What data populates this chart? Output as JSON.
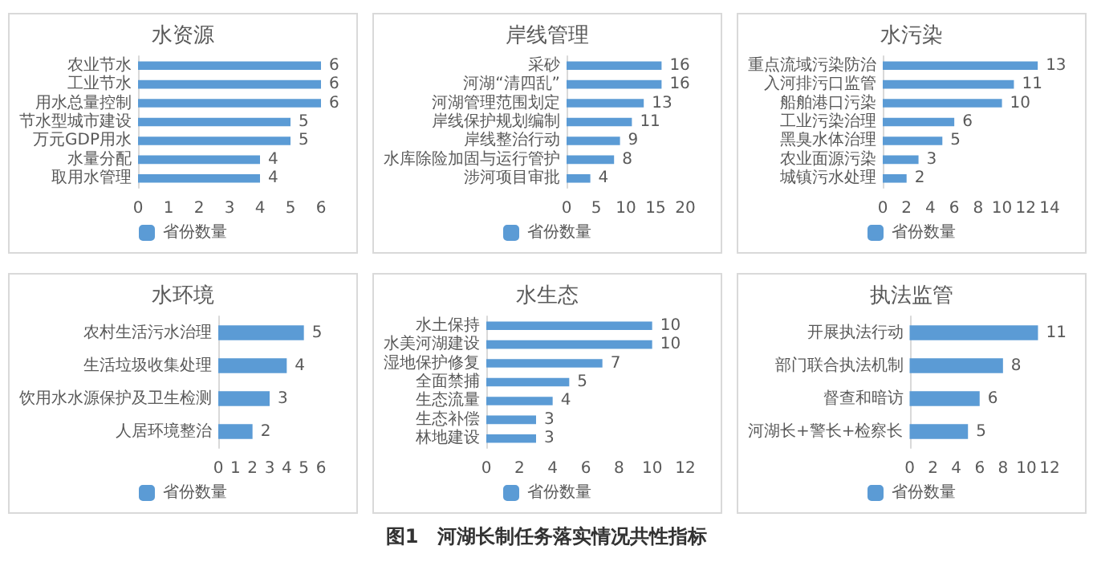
{
  "chart_data": [
    {
      "type": "bar",
      "orientation": "horizontal",
      "title": "水资源",
      "categories": [
        "农业节水",
        "工业节水",
        "用水总量控制",
        "节水型城市建设",
        "万元GDP用水",
        "水量分配",
        "取用水管理"
      ],
      "series": [
        {
          "name": "省份数量",
          "color": "#5b9bd5",
          "values": [
            6,
            6,
            6,
            5,
            5,
            4,
            4
          ]
        }
      ],
      "xlim": [
        0,
        6
      ],
      "xticks": [
        0,
        1,
        2,
        3,
        4,
        5,
        6
      ],
      "data_labels": true,
      "legend": "bottom"
    },
    {
      "type": "bar",
      "orientation": "horizontal",
      "title": "岸线管理",
      "categories": [
        "采砂",
        "河湖“清四乱”",
        "河湖管理范围划定",
        "岸线保护规划编制",
        "岸线整治行动",
        "水库除险加固与运行管护",
        "涉河项目审批"
      ],
      "series": [
        {
          "name": "省份数量",
          "color": "#5b9bd5",
          "values": [
            16,
            16,
            13,
            11,
            9,
            8,
            4
          ]
        }
      ],
      "xlim": [
        0,
        20
      ],
      "xticks": [
        0,
        5,
        10,
        15,
        20
      ],
      "data_labels": true,
      "legend": "bottom"
    },
    {
      "type": "bar",
      "orientation": "horizontal",
      "title": "水污染",
      "categories": [
        "重点流域污染防治",
        "入河排污口监管",
        "船舶港口污染",
        "工业污染治理",
        "黑臭水体治理",
        "农业面源污染",
        "城镇污水处理"
      ],
      "series": [
        {
          "name": "省份数量",
          "color": "#5b9bd5",
          "values": [
            13,
            11,
            10,
            6,
            5,
            3,
            2
          ]
        }
      ],
      "xlim": [
        0,
        14
      ],
      "xticks": [
        0,
        2,
        4,
        6,
        8,
        10,
        12,
        14
      ],
      "data_labels": true,
      "legend": "bottom"
    },
    {
      "type": "bar",
      "orientation": "horizontal",
      "title": "水环境",
      "categories": [
        "农村生活污水治理",
        "生活垃圾收集处理",
        "饮用水水源保护及卫生检测",
        "人居环境整治"
      ],
      "series": [
        {
          "name": "省份数量",
          "color": "#5b9bd5",
          "values": [
            5,
            4,
            3,
            2
          ]
        }
      ],
      "xlim": [
        0,
        6
      ],
      "xticks": [
        0,
        1,
        2,
        3,
        4,
        5,
        6
      ],
      "data_labels": true,
      "legend": "bottom"
    },
    {
      "type": "bar",
      "orientation": "horizontal",
      "title": "水生态",
      "categories": [
        "水土保持",
        "水美河湖建设",
        "湿地保护修复",
        "全面禁捕",
        "生态流量",
        "生态补偿",
        "林地建设"
      ],
      "series": [
        {
          "name": "省份数量",
          "color": "#5b9bd5",
          "values": [
            10,
            10,
            7,
            5,
            4,
            3,
            3
          ]
        }
      ],
      "xlim": [
        0,
        12
      ],
      "xticks": [
        0,
        2,
        4,
        6,
        8,
        10,
        12
      ],
      "data_labels": true,
      "legend": "bottom",
      "annotations": [
        "图1　河湖长制任务落实情况共性指标"
      ]
    },
    {
      "type": "bar",
      "orientation": "horizontal",
      "title": "执法监管",
      "categories": [
        "开展执法行动",
        "部门联合执法机制",
        "督查和暗访",
        "河湖长+警长+检察长"
      ],
      "series": [
        {
          "name": "省份数量",
          "color": "#5b9bd5",
          "values": [
            11,
            8,
            6,
            5
          ]
        }
      ],
      "xlim": [
        0,
        12
      ],
      "xticks": [
        0,
        2,
        4,
        6,
        8,
        10,
        12
      ],
      "data_labels": true,
      "legend": "bottom"
    }
  ]
}
